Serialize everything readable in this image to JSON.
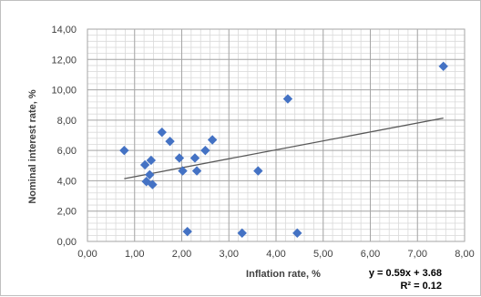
{
  "chart_data": {
    "type": "scatter",
    "xlabel": "Inflation rate, %",
    "ylabel": "Nominal interest rate, %",
    "xlim": [
      0,
      8
    ],
    "ylim": [
      0,
      14
    ],
    "x_ticks": [
      0,
      1,
      2,
      3,
      4,
      5,
      6,
      7,
      8
    ],
    "y_ticks": [
      0,
      2,
      4,
      6,
      8,
      10,
      12,
      14
    ],
    "x_tick_labels": [
      "0,00",
      "1,00",
      "2,00",
      "3,00",
      "4,00",
      "5,00",
      "6,00",
      "7,00",
      "8,00"
    ],
    "y_tick_labels": [
      "0,00",
      "2,00",
      "4,00",
      "6,00",
      "8,00",
      "10,00",
      "12,00",
      "14,00"
    ],
    "minor_grid_x_step": 0.2,
    "minor_grid_y_step": 0.4,
    "grid": true,
    "marker": "diamond",
    "colors": {
      "marker": "#4472C4",
      "trendline": "#595959",
      "major_grid": "#a6a6a6",
      "minor_grid": "#d9d9d9"
    },
    "points": [
      {
        "x": 0.78,
        "y": 6.0
      },
      {
        "x": 1.22,
        "y": 5.05
      },
      {
        "x": 1.25,
        "y": 3.95
      },
      {
        "x": 1.32,
        "y": 4.4
      },
      {
        "x": 1.35,
        "y": 5.35
      },
      {
        "x": 1.38,
        "y": 3.75
      },
      {
        "x": 1.58,
        "y": 7.2
      },
      {
        "x": 1.75,
        "y": 6.6
      },
      {
        "x": 1.95,
        "y": 5.5
      },
      {
        "x": 2.02,
        "y": 4.65
      },
      {
        "x": 2.12,
        "y": 0.65
      },
      {
        "x": 2.28,
        "y": 5.5
      },
      {
        "x": 2.32,
        "y": 4.65
      },
      {
        "x": 2.5,
        "y": 6.0
      },
      {
        "x": 2.65,
        "y": 6.7
      },
      {
        "x": 3.28,
        "y": 0.55
      },
      {
        "x": 3.62,
        "y": 4.65
      },
      {
        "x": 4.25,
        "y": 9.4
      },
      {
        "x": 4.45,
        "y": 0.55
      },
      {
        "x": 7.55,
        "y": 11.55
      }
    ],
    "trendline": {
      "slope": 0.59,
      "intercept": 3.68,
      "x_range": [
        0.78,
        7.55
      ],
      "equation": "y = 0.59x + 3.68",
      "r_squared": "R² = 0.12"
    }
  }
}
